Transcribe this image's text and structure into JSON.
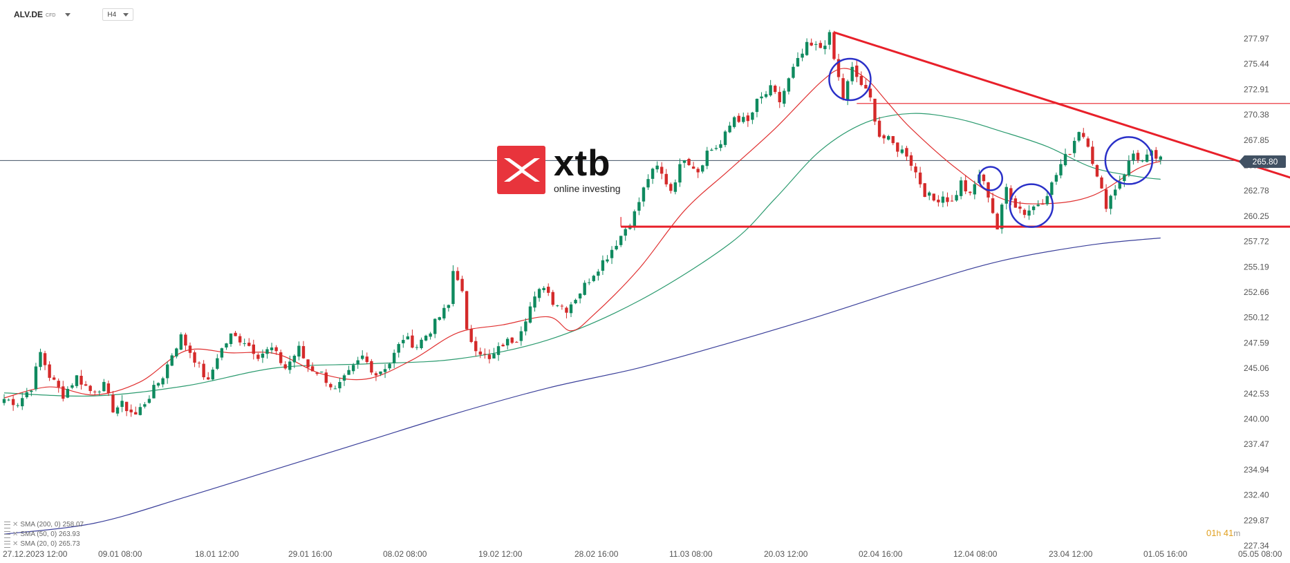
{
  "toolbar": {
    "symbol": "ALV.DE",
    "symbol_type": "CFD",
    "timeframe": "H4"
  },
  "logo": {
    "word": "xtb",
    "tagline": "online investing"
  },
  "last_price": "265.80",
  "countdown": {
    "hours": "01",
    "h_unit": "h",
    "minutes": "41",
    "m_unit": "m"
  },
  "indicators": [
    {
      "label": "SMA (200, 0) 258.07",
      "color": "#3a3f9a"
    },
    {
      "label": "SMA (50, 0) 263.93",
      "color": "#2a9a6e"
    },
    {
      "label": "SMA (20, 0) 265.73",
      "color": "#e03030"
    }
  ],
  "colors": {
    "up": "#0f8a5f",
    "down": "#d42a2a",
    "sma200": "#3a3f9a",
    "sma50": "#2a9a6e",
    "sma20": "#e03030",
    "trendline": "#e8202a",
    "circles": "#2a30c8",
    "price_line": "#415163"
  },
  "chart_data": {
    "type": "candlestick",
    "y_axis": {
      "min": 227.34,
      "max": 277.97,
      "ticks": [
        "277.97",
        "275.44",
        "272.91",
        "270.38",
        "267.85",
        "265.32",
        "262.78",
        "260.25",
        "257.72",
        "255.19",
        "252.66",
        "250.12",
        "247.59",
        "245.06",
        "242.53",
        "240.00",
        "237.47",
        "234.94",
        "232.40",
        "229.87",
        "227.34"
      ]
    },
    "x_axis": {
      "labels": [
        "27.12.2023   12:00",
        "09.01  08:00",
        "18.01  12:00",
        "29.01  16:00",
        "08.02  08:00",
        "19.02  12:00",
        "28.02  16:00",
        "11.03  08:00",
        "20.03  12:00",
        "02.04  16:00",
        "12.04  08:00",
        "23.04  12:00",
        "01.05  16:00",
        "05.05  08:00"
      ]
    },
    "anchors": [
      {
        "i": 0,
        "v": 242.0
      },
      {
        "i": 3,
        "v": 241.6
      },
      {
        "i": 6,
        "v": 243.2
      },
      {
        "i": 8,
        "v": 246.6
      },
      {
        "i": 10,
        "v": 244.3
      },
      {
        "i": 13,
        "v": 242.4
      },
      {
        "i": 16,
        "v": 244.2
      },
      {
        "i": 19,
        "v": 242.8
      },
      {
        "i": 22,
        "v": 243.3
      },
      {
        "i": 24,
        "v": 241.0
      },
      {
        "i": 26,
        "v": 241.4
      },
      {
        "i": 29,
        "v": 240.4
      },
      {
        "i": 32,
        "v": 242.3
      },
      {
        "i": 35,
        "v": 244.3
      },
      {
        "i": 37,
        "v": 246.5
      },
      {
        "i": 39,
        "v": 248.2
      },
      {
        "i": 42,
        "v": 246.0
      },
      {
        "i": 45,
        "v": 243.6
      },
      {
        "i": 47,
        "v": 246.3
      },
      {
        "i": 50,
        "v": 248.3
      },
      {
        "i": 53,
        "v": 247.8
      },
      {
        "i": 56,
        "v": 246.4
      },
      {
        "i": 59,
        "v": 247.0
      },
      {
        "i": 62,
        "v": 245.1
      },
      {
        "i": 65,
        "v": 247.0
      },
      {
        "i": 67,
        "v": 245.2
      },
      {
        "i": 70,
        "v": 244.5
      },
      {
        "i": 73,
        "v": 242.8
      },
      {
        "i": 76,
        "v": 244.5
      },
      {
        "i": 79,
        "v": 246.2
      },
      {
        "i": 82,
        "v": 244.5
      },
      {
        "i": 85,
        "v": 245.6
      },
      {
        "i": 88,
        "v": 248.1
      },
      {
        "i": 91,
        "v": 247.3
      },
      {
        "i": 94,
        "v": 248.9
      },
      {
        "i": 96,
        "v": 250.2
      },
      {
        "i": 98,
        "v": 251.3
      },
      {
        "i": 99,
        "v": 254.8
      },
      {
        "i": 100,
        "v": 254.2
      },
      {
        "i": 101,
        "v": 252.5
      },
      {
        "i": 102,
        "v": 248.6
      },
      {
        "i": 104,
        "v": 247.2
      },
      {
        "i": 107,
        "v": 245.8
      },
      {
        "i": 110,
        "v": 247.5
      },
      {
        "i": 113,
        "v": 248.1
      },
      {
        "i": 116,
        "v": 251.2
      },
      {
        "i": 119,
        "v": 253.4
      },
      {
        "i": 121,
        "v": 251.8
      },
      {
        "i": 124,
        "v": 251.0
      },
      {
        "i": 127,
        "v": 252.7
      },
      {
        "i": 130,
        "v": 254.6
      },
      {
        "i": 133,
        "v": 256.3
      },
      {
        "i": 136,
        "v": 258.3
      },
      {
        "i": 139,
        "v": 260.5
      },
      {
        "i": 142,
        "v": 264.1
      },
      {
        "i": 144,
        "v": 265.1
      },
      {
        "i": 147,
        "v": 262.9
      },
      {
        "i": 150,
        "v": 266.2
      },
      {
        "i": 153,
        "v": 264.8
      },
      {
        "i": 155,
        "v": 266.7
      },
      {
        "i": 158,
        "v": 267.4
      },
      {
        "i": 161,
        "v": 270.2
      },
      {
        "i": 164,
        "v": 269.6
      },
      {
        "i": 166,
        "v": 271.6
      },
      {
        "i": 169,
        "v": 272.9
      },
      {
        "i": 171,
        "v": 271.7
      },
      {
        "i": 174,
        "v": 274.9
      },
      {
        "i": 177,
        "v": 277.2
      },
      {
        "i": 180,
        "v": 277.1
      },
      {
        "i": 182,
        "v": 278.2
      },
      {
        "i": 183,
        "v": 275.9
      },
      {
        "i": 185,
        "v": 272.1
      },
      {
        "i": 187,
        "v": 274.9
      },
      {
        "i": 189,
        "v": 273.4
      },
      {
        "i": 191,
        "v": 271.9
      },
      {
        "i": 193,
        "v": 268.3
      },
      {
        "i": 195,
        "v": 267.8
      },
      {
        "i": 197,
        "v": 267.0
      },
      {
        "i": 199,
        "v": 266.5
      },
      {
        "i": 201,
        "v": 264.6
      },
      {
        "i": 203,
        "v": 262.6
      },
      {
        "i": 205,
        "v": 261.8
      },
      {
        "i": 207,
        "v": 262.3
      },
      {
        "i": 209,
        "v": 261.6
      },
      {
        "i": 211,
        "v": 263.6
      },
      {
        "i": 213,
        "v": 262.2
      },
      {
        "i": 215,
        "v": 264.5
      },
      {
        "i": 217,
        "v": 262.4
      },
      {
        "i": 219,
        "v": 259.0
      },
      {
        "i": 221,
        "v": 263.1
      },
      {
        "i": 223,
        "v": 261.4
      },
      {
        "i": 225,
        "v": 260.6
      },
      {
        "i": 227,
        "v": 261.2
      },
      {
        "i": 229,
        "v": 261.9
      },
      {
        "i": 231,
        "v": 263.4
      },
      {
        "i": 233,
        "v": 265.4
      },
      {
        "i": 235,
        "v": 266.8
      },
      {
        "i": 237,
        "v": 268.9
      },
      {
        "i": 239,
        "v": 267.6
      },
      {
        "i": 241,
        "v": 264.0
      },
      {
        "i": 243,
        "v": 261.4
      },
      {
        "i": 245,
        "v": 263.1
      },
      {
        "i": 247,
        "v": 264.6
      },
      {
        "i": 249,
        "v": 266.5
      },
      {
        "i": 251,
        "v": 265.7
      },
      {
        "i": 253,
        "v": 266.4
      },
      {
        "i": 255,
        "v": 265.8
      }
    ],
    "sma200": [
      [
        0,
        228.5
      ],
      [
        20,
        229.6
      ],
      [
        40,
        232.2
      ],
      [
        60,
        235.0
      ],
      [
        80,
        237.8
      ],
      [
        100,
        240.6
      ],
      [
        120,
        243.1
      ],
      [
        140,
        245.1
      ],
      [
        160,
        247.6
      ],
      [
        180,
        250.3
      ],
      [
        200,
        253.2
      ],
      [
        220,
        255.8
      ],
      [
        240,
        257.4
      ],
      [
        255,
        258.07
      ]
    ],
    "sma50": [
      [
        0,
        242.6
      ],
      [
        20,
        242.3
      ],
      [
        40,
        243.3
      ],
      [
        60,
        245.1
      ],
      [
        80,
        245.5
      ],
      [
        100,
        246.0
      ],
      [
        120,
        247.9
      ],
      [
        140,
        251.8
      ],
      [
        160,
        257.5
      ],
      [
        170,
        262.0
      ],
      [
        180,
        266.8
      ],
      [
        190,
        269.6
      ],
      [
        200,
        270.5
      ],
      [
        210,
        270.0
      ],
      [
        220,
        268.7
      ],
      [
        230,
        267.2
      ],
      [
        240,
        265.1
      ],
      [
        250,
        264.2
      ],
      [
        255,
        263.93
      ]
    ],
    "sma20": [
      [
        0,
        242.1
      ],
      [
        10,
        243.2
      ],
      [
        20,
        242.4
      ],
      [
        30,
        243.7
      ],
      [
        40,
        246.8
      ],
      [
        50,
        246.6
      ],
      [
        60,
        246.5
      ],
      [
        70,
        244.5
      ],
      [
        80,
        244.0
      ],
      [
        90,
        245.9
      ],
      [
        100,
        248.6
      ],
      [
        110,
        249.4
      ],
      [
        120,
        250.2
      ],
      [
        125,
        248.8
      ],
      [
        130,
        250.4
      ],
      [
        140,
        255.0
      ],
      [
        150,
        260.8
      ],
      [
        160,
        264.9
      ],
      [
        170,
        269.0
      ],
      [
        180,
        273.6
      ],
      [
        185,
        275.0
      ],
      [
        190,
        274.0
      ],
      [
        195,
        271.5
      ],
      [
        200,
        269.0
      ],
      [
        210,
        265.0
      ],
      [
        220,
        262.0
      ],
      [
        230,
        261.5
      ],
      [
        240,
        262.3
      ],
      [
        250,
        265.0
      ],
      [
        255,
        265.73
      ]
    ],
    "annotations": {
      "support": {
        "v": 259.2,
        "i_start": 136,
        "i_end": 295
      },
      "resistance": {
        "v": 271.5,
        "i_start": 188,
        "i_end": 292
      },
      "trendline": {
        "from": {
          "i": 183,
          "v": 278.6
        },
        "to": {
          "i": 285,
          "v": 263.9
        }
      },
      "circles": [
        {
          "i": 186.5,
          "v": 273.9,
          "r": 30
        },
        {
          "i": 217.5,
          "v": 264.0,
          "r": 17
        },
        {
          "i": 226.5,
          "v": 261.3,
          "r": 31
        },
        {
          "i": 248,
          "v": 265.8,
          "r": 34
        }
      ]
    }
  }
}
